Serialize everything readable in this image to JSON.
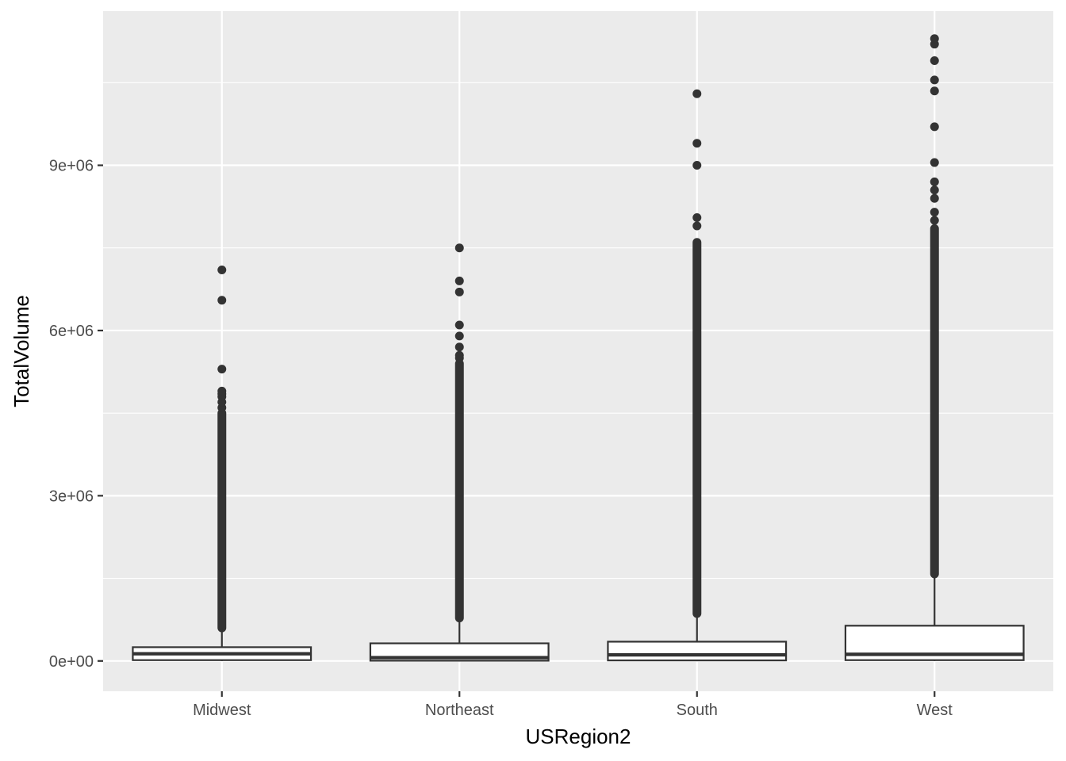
{
  "chart_data": {
    "type": "boxplot",
    "xlabel": "USRegion2",
    "ylabel": "TotalVolume",
    "categories": [
      "Midwest",
      "Northeast",
      "South",
      "West"
    ],
    "ylim": [
      -550000,
      11800000
    ],
    "y_ticks": [
      0,
      3000000,
      6000000,
      9000000
    ],
    "y_tick_labels": [
      "0e+00",
      "3e+06",
      "6e+06",
      "9e+06"
    ],
    "grid": true,
    "colors": {
      "panel_background": "#ebebeb",
      "grid": "#ffffff",
      "box_fill": "#ffffff",
      "box_line": "#333333",
      "outlier": "#333333",
      "tick": "#333333"
    },
    "boxes": [
      {
        "category": "Midwest",
        "q1": 15000,
        "median": 130000,
        "q3": 250000,
        "whisker_low": 0,
        "whisker_high": 600000,
        "outlier_range": [
          600000,
          4500000
        ],
        "outliers": [
          4600000,
          4700000,
          4800000,
          4850000,
          4900000,
          5300000,
          6550000,
          7100000
        ]
      },
      {
        "category": "Northeast",
        "q1": 5000,
        "median": 60000,
        "q3": 320000,
        "whisker_low": 0,
        "whisker_high": 780000,
        "outlier_range": [
          780000,
          5400000
        ],
        "outliers": [
          5500000,
          5550000,
          5700000,
          5900000,
          6100000,
          6700000,
          6900000,
          7500000
        ]
      },
      {
        "category": "South",
        "q1": 10000,
        "median": 110000,
        "q3": 350000,
        "whisker_low": 0,
        "whisker_high": 860000,
        "outlier_range": [
          860000,
          7600000
        ],
        "outliers": [
          7900000,
          8050000,
          9000000,
          9400000,
          10300000
        ]
      },
      {
        "category": "West",
        "q1": 15000,
        "median": 120000,
        "q3": 640000,
        "whisker_low": 0,
        "whisker_high": 1580000,
        "outlier_range": [
          1580000,
          7850000
        ],
        "outliers": [
          8000000,
          8150000,
          8400000,
          8550000,
          8700000,
          9050000,
          9700000,
          10350000,
          10550000,
          10900000,
          11200000,
          11300000
        ]
      }
    ]
  }
}
